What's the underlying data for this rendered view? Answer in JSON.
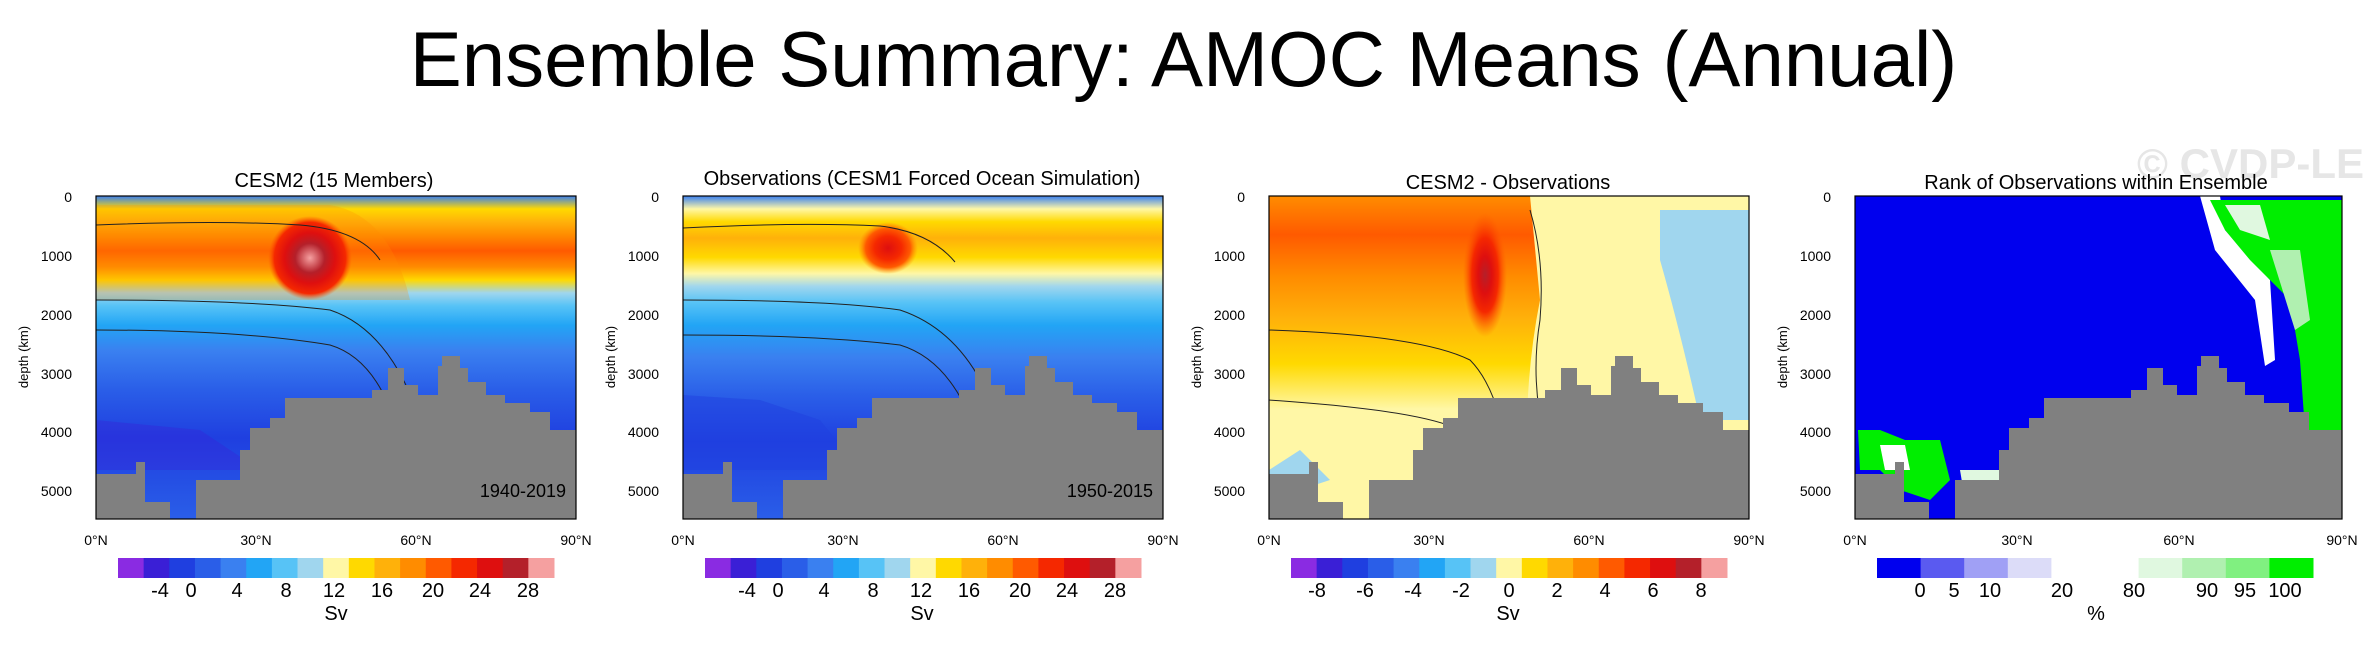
{
  "figure": {
    "title": "Ensemble Summary: AMOC Means (Annual)",
    "watermark": "© CVDP-LE"
  },
  "chart_data": [
    {
      "type": "heatmap",
      "title": "CESM2 (15 Members)",
      "ylabel": "depth (km)",
      "x_ticks": [
        "0°N",
        "30°N",
        "60°N",
        "90°N"
      ],
      "y_ticks": [
        "0",
        "1000",
        "2000",
        "3000",
        "4000",
        "5000"
      ],
      "ylim": [
        5500,
        0
      ],
      "annotation": "1940-2019",
      "colorbar": {
        "label": "Sv",
        "tick_labels": [
          "-4",
          "0",
          "4",
          "8",
          "12",
          "16",
          "20",
          "24",
          "28"
        ],
        "colors": [
          "#8a2be2",
          "#3a1fd6",
          "#1f3fe0",
          "#2a5ee8",
          "#3a80f0",
          "#22a5f5",
          "#57c3f6",
          "#a0d6ee",
          "#fff7a6",
          "#ffd900",
          "#ffb10a",
          "#ff8c00",
          "#ff5a00",
          "#f52800",
          "#de0f0f",
          "#b4202a",
          "#f5a0a0"
        ]
      }
    },
    {
      "type": "heatmap",
      "title": "Observations (CESM1 Forced Ocean Simulation)",
      "ylabel": "depth (km)",
      "x_ticks": [
        "0°N",
        "30°N",
        "60°N",
        "90°N"
      ],
      "y_ticks": [
        "0",
        "1000",
        "2000",
        "3000",
        "4000",
        "5000"
      ],
      "ylim": [
        5500,
        0
      ],
      "annotation": "1950-2015",
      "colorbar": {
        "label": "Sv",
        "tick_labels": [
          "-4",
          "0",
          "4",
          "8",
          "12",
          "16",
          "20",
          "24",
          "28"
        ],
        "colors": [
          "#8a2be2",
          "#3a1fd6",
          "#1f3fe0",
          "#2a5ee8",
          "#3a80f0",
          "#22a5f5",
          "#57c3f6",
          "#a0d6ee",
          "#fff7a6",
          "#ffd900",
          "#ffb10a",
          "#ff8c00",
          "#ff5a00",
          "#f52800",
          "#de0f0f",
          "#b4202a",
          "#f5a0a0"
        ]
      }
    },
    {
      "type": "heatmap",
      "title": "CESM2 - Observations",
      "ylabel": "depth (km)",
      "x_ticks": [
        "0°N",
        "30°N",
        "60°N",
        "90°N"
      ],
      "y_ticks": [
        "0",
        "1000",
        "2000",
        "3000",
        "4000",
        "5000"
      ],
      "ylim": [
        5500,
        0
      ],
      "annotation": "",
      "colorbar": {
        "label": "Sv",
        "tick_labels": [
          "-8",
          "-6",
          "-4",
          "-2",
          "0",
          "2",
          "4",
          "6",
          "8"
        ],
        "colors": [
          "#8a2be2",
          "#3a1fd6",
          "#1f3fe0",
          "#2a5ee8",
          "#3a80f0",
          "#22a5f5",
          "#57c3f6",
          "#a0d6ee",
          "#fff7a6",
          "#ffd900",
          "#ffb10a",
          "#ff8c00",
          "#ff5a00",
          "#f52800",
          "#de0f0f",
          "#b4202a",
          "#f5a0a0"
        ]
      }
    },
    {
      "type": "heatmap",
      "title": "Rank of Observations within Ensemble",
      "ylabel": "depth (km)",
      "x_ticks": [
        "0°N",
        "30°N",
        "60°N",
        "90°N"
      ],
      "y_ticks": [
        "0",
        "1000",
        "2000",
        "3000",
        "4000",
        "5000"
      ],
      "ylim": [
        5500,
        0
      ],
      "annotation": "",
      "colorbar": {
        "label": "%",
        "tick_labels": [
          "0",
          "5",
          "10",
          "20",
          "80",
          "90",
          "95",
          "100"
        ],
        "colors": [
          "#0000ee",
          "#5a5af0",
          "#a0a0f5",
          "#dcdcf8",
          "#ffffff",
          "#ffffff",
          "#e0f8e0",
          "#b0f0b0",
          "#80f080",
          "#00ee00"
        ]
      }
    }
  ]
}
